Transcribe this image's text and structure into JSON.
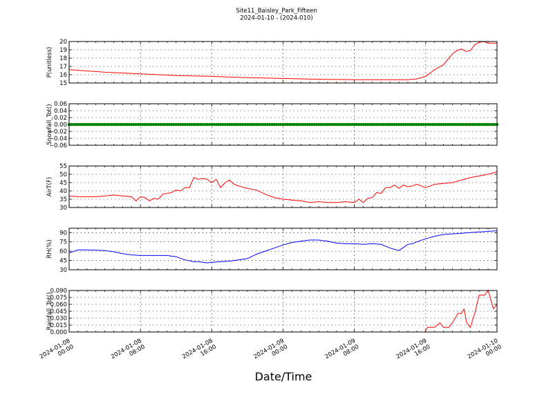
{
  "title": "Site11_Baisley_Park_Fifteen",
  "subtitle": "2024-01-10 - (2024-010)",
  "xlabel": "Date/Time",
  "xtick_labels": [
    [
      "2024-01-08",
      "00:00"
    ],
    [
      "2024-01-08",
      "08:00"
    ],
    [
      "2024-01-08",
      "16:00"
    ],
    [
      "2024-01-09",
      "00:00"
    ],
    [
      "2024-01-09",
      "08:00"
    ],
    [
      "2024-01-09",
      "16:00"
    ],
    [
      "2024-01-10",
      "00:00"
    ]
  ],
  "chart_data": [
    {
      "type": "line",
      "ylabel": "P(unitless)",
      "ylim": [
        15,
        20
      ],
      "yticks": [
        "15",
        "16",
        "17",
        "18",
        "19",
        "20"
      ],
      "grid": true,
      "color": "#ff0000",
      "x": [
        0,
        4,
        8,
        12,
        16,
        20,
        24,
        28,
        32,
        36,
        38,
        39,
        40,
        41,
        42,
        43,
        43.5,
        44,
        44.5,
        45,
        45.5,
        46,
        46.5,
        47,
        47.5,
        48
      ],
      "y": [
        16.6,
        16.3,
        16.1,
        15.9,
        15.8,
        15.65,
        15.55,
        15.45,
        15.4,
        15.4,
        15.4,
        15.5,
        15.8,
        16.6,
        17.2,
        18.5,
        18.9,
        19.1,
        18.8,
        18.9,
        19.6,
        19.9,
        20.0,
        19.8,
        19.8,
        19.8
      ]
    },
    {
      "type": "scatter",
      "ylabel": "Snowfall_Tot()",
      "ylim": [
        -0.06,
        0.06
      ],
      "yticks": [
        "−0.06",
        "−0.04",
        "−0.02",
        "0.00",
        "0.02",
        "0.04",
        "0.06"
      ],
      "grid": true,
      "color": "#008000",
      "x_start": 0,
      "x_end": 48,
      "x_step": 0.25,
      "constant_value": 0.0
    },
    {
      "type": "line",
      "ylabel": "AirT(F)",
      "ylim": [
        30,
        55
      ],
      "yticks": [
        "30",
        "35",
        "40",
        "45",
        "50",
        "55"
      ],
      "grid": true,
      "color": "#ff0000",
      "x": [
        0,
        1,
        2,
        3,
        4,
        5,
        6,
        7,
        7.5,
        8,
        8.5,
        9,
        9.5,
        10,
        10.5,
        11,
        11.5,
        12,
        12.5,
        13,
        13.5,
        14,
        14.5,
        15,
        15.5,
        16,
        16.5,
        17,
        17.5,
        18,
        18.5,
        19,
        20,
        21,
        22,
        23,
        24,
        25,
        26,
        27,
        28,
        29,
        30,
        31,
        32,
        32.5,
        33,
        33.5,
        34,
        34.5,
        35,
        35.5,
        36,
        36.5,
        37,
        37.5,
        38,
        38.5,
        39,
        39.5,
        40,
        40.5,
        41,
        42,
        43,
        44,
        45,
        46,
        47,
        48
      ],
      "y": [
        37,
        36.5,
        36.5,
        36.5,
        37,
        37.5,
        37,
        36.5,
        34,
        36.5,
        36,
        34,
        35.5,
        35,
        38,
        38.5,
        39,
        40.5,
        40,
        42,
        42,
        48,
        47,
        47.5,
        47,
        45,
        47,
        42,
        45,
        46.5,
        44,
        43,
        41.5,
        40.5,
        38,
        36,
        35,
        34.5,
        34,
        33,
        33.5,
        33,
        33,
        33.5,
        33,
        35,
        33,
        35.5,
        36,
        39,
        38.5,
        42,
        42,
        43.5,
        41.5,
        43.5,
        42.5,
        43,
        44,
        43,
        42,
        43,
        44,
        44.5,
        45,
        46.5,
        48,
        49,
        50,
        51.5
      ]
    },
    {
      "type": "line",
      "ylabel": "RH(%)",
      "ylim": [
        30,
        97
      ],
      "yticks": [
        "30",
        "45",
        "60",
        "75",
        "90"
      ],
      "grid": true,
      "color": "#0000ff",
      "x": [
        0,
        1,
        2,
        3,
        4,
        5,
        6,
        7,
        8,
        9,
        10,
        11,
        12,
        13,
        14,
        14.5,
        15,
        15.5,
        16,
        17,
        18,
        19,
        20,
        21,
        22,
        23,
        24,
        25,
        26,
        27,
        28,
        29,
        30,
        31,
        32,
        33,
        34,
        35,
        36,
        37,
        37.5,
        38,
        38.5,
        39,
        40,
        41,
        42,
        43,
        44,
        45,
        46,
        47,
        48
      ],
      "y": [
        57,
        62,
        62,
        61.5,
        61,
        59,
        56,
        54,
        53,
        53,
        53,
        53,
        51,
        46,
        43,
        43,
        42,
        41,
        42,
        43,
        44,
        46,
        48,
        55,
        60,
        65,
        70,
        74,
        76,
        78,
        78,
        76,
        73,
        72,
        72,
        71,
        72,
        71,
        65,
        61,
        66,
        71,
        72,
        75,
        80,
        84,
        87,
        88,
        89,
        90,
        91,
        92,
        93
      ]
    },
    {
      "type": "line",
      "ylabel": "Rainfall_Tot()",
      "ylim": [
        0,
        0.09
      ],
      "yticks": [
        "0.000",
        "0.015",
        "0.030",
        "0.045",
        "0.060",
        "0.075",
        "0.090"
      ],
      "grid": true,
      "color": "#ff0000",
      "x": [
        0,
        39.9,
        40.2,
        40.6,
        41,
        41.6,
        42,
        42.3,
        42.6,
        43,
        43.3,
        43.6,
        44,
        44.3,
        44.6,
        45,
        45.5,
        46,
        46.3,
        46.6,
        47,
        47.3,
        47.6,
        48
      ],
      "y": [
        0,
        0,
        0.01,
        0.01,
        0.01,
        0.02,
        0.01,
        0.01,
        0.01,
        0.02,
        0.03,
        0.04,
        0.04,
        0.05,
        0.02,
        0.01,
        0.04,
        0.08,
        0.08,
        0.08,
        0.09,
        0.07,
        0.05,
        0.06
      ]
    }
  ]
}
